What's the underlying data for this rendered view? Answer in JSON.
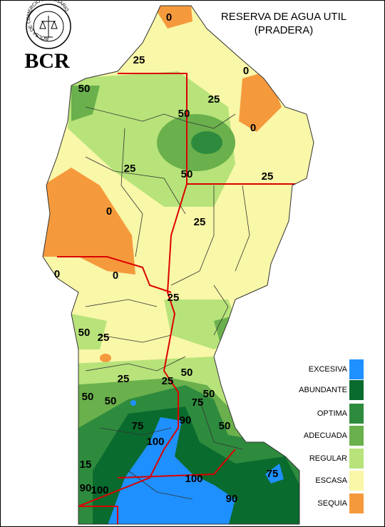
{
  "logo": {
    "ring_text": "BOLSA DE COMERCIO DE ROSARIO",
    "acronym": "BCR"
  },
  "header": {
    "title": "RESERVA DE AGUA UTIL",
    "subtitle": "(PRADERA)"
  },
  "legend": [
    {
      "label": "EXCESIVA",
      "color": "#1e90ff"
    },
    {
      "label": "ABUNDANTE",
      "color": "#0a6b2e"
    },
    {
      "label": "OPTIMA",
      "color": "#2e8b3e"
    },
    {
      "label": "ADECUADA",
      "color": "#6ab04c"
    },
    {
      "label": "REGULAR",
      "color": "#b7e37a"
    },
    {
      "label": "ESCASA",
      "color": "#f9f7a8"
    },
    {
      "label": "SEQUIA",
      "color": "#f59a3c"
    }
  ],
  "map": {
    "contour_labels": [
      "0",
      "25",
      "0",
      "50",
      "25",
      "50",
      "0",
      "25",
      "50",
      "25",
      "0",
      "25",
      "0",
      "0",
      "25",
      "50",
      "25",
      "25",
      "50",
      "25",
      "50",
      "50",
      "50",
      "75",
      "75",
      "90",
      "50",
      "100",
      "15",
      "90",
      "100",
      "100",
      "90",
      "75"
    ]
  }
}
